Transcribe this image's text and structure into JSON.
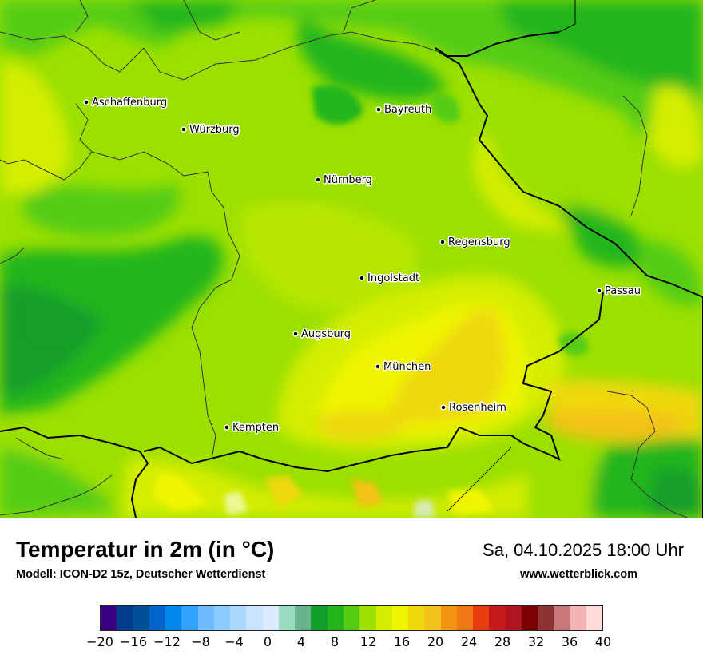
{
  "title": "Temperatur in 2m (in °C)",
  "model": "Modell: ICON-D2 15z, Deutscher Wetterdienst",
  "datetime": "Sa, 04.10.2025 18:00 Uhr",
  "website": "www.wetterblick.com",
  "cities": [
    {
      "name": "Aschaffenburg"
    },
    {
      "name": "Würzburg"
    },
    {
      "name": "Bayreuth"
    },
    {
      "name": "Nürnberg"
    },
    {
      "name": "Regensburg"
    },
    {
      "name": "Ingolstadt"
    },
    {
      "name": "Passau"
    },
    {
      "name": "Augsburg"
    },
    {
      "name": "München"
    },
    {
      "name": "Rosenheim"
    },
    {
      "name": "Kempten"
    }
  ],
  "legend": {
    "unit": "°C",
    "colors": [
      "#3b0083",
      "#003c8c",
      "#004f99",
      "#0066cc",
      "#0088ee",
      "#33a1ff",
      "#6fbaff",
      "#8ccbff",
      "#aad8ff",
      "#c8e4ff",
      "#dcebff",
      "#99dbbf",
      "#66b38c",
      "#129e2a",
      "#23b51a",
      "#54cc13",
      "#9be000",
      "#d4ee00",
      "#f0f500",
      "#efd80d",
      "#f4c118",
      "#f29412",
      "#f07814",
      "#e63c0f",
      "#c41a1a",
      "#b0141e",
      "#7d0000",
      "#8c3232",
      "#c87878",
      "#f5b4b4",
      "#ffdcdc"
    ],
    "ticks": [
      "−20",
      "−16",
      "−12",
      "−8",
      "−4",
      "0",
      "4",
      "8",
      "12",
      "16",
      "20",
      "24",
      "28",
      "32",
      "36",
      "40"
    ]
  }
}
